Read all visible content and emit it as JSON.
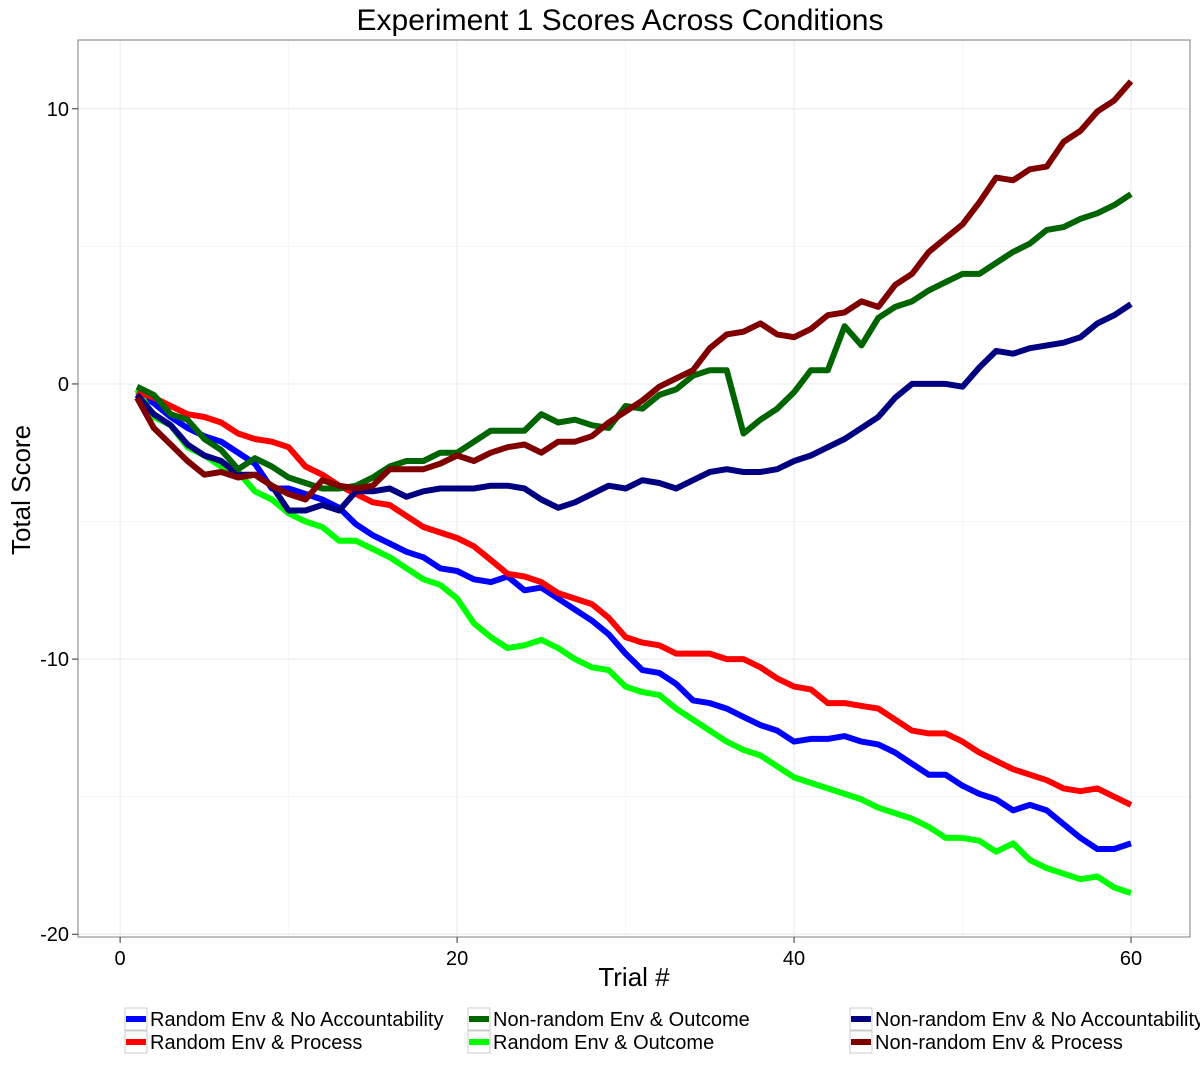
{
  "chart_data": {
    "type": "line",
    "title": "Experiment 1 Scores Across Conditions",
    "xlabel": "Trial #",
    "ylabel": "Total Score",
    "xlim": [
      -2.5,
      63.5
    ],
    "ylim": [
      -20.1,
      12.5
    ],
    "x_ticks": [
      0,
      20,
      40,
      60
    ],
    "y_ticks": [
      -20,
      -10,
      0,
      10
    ],
    "x_tick_labels": [
      "0",
      "20",
      "40",
      "60"
    ],
    "y_tick_labels": [
      "-20",
      "-10",
      "0",
      "10"
    ],
    "grid": true,
    "legend_position": "bottom",
    "x": [
      1,
      2,
      3,
      4,
      5,
      6,
      7,
      8,
      9,
      10,
      11,
      12,
      13,
      14,
      15,
      16,
      17,
      18,
      19,
      20,
      21,
      22,
      23,
      24,
      25,
      26,
      27,
      28,
      29,
      30,
      31,
      32,
      33,
      34,
      35,
      36,
      37,
      38,
      39,
      40,
      41,
      42,
      43,
      44,
      45,
      46,
      47,
      48,
      49,
      50,
      51,
      52,
      53,
      54,
      55,
      56,
      57,
      58,
      59,
      60
    ],
    "series": [
      {
        "name": "Random Env & No Accountability",
        "color": "#0000ff",
        "values": [
          -0.3,
          -0.7,
          -1.2,
          -1.6,
          -1.9,
          -2.1,
          -2.5,
          -2.9,
          -3.8,
          -3.8,
          -4.0,
          -4.2,
          -4.5,
          -5.1,
          -5.5,
          -5.8,
          -6.1,
          -6.3,
          -6.7,
          -6.8,
          -7.1,
          -7.2,
          -7.0,
          -7.5,
          -7.4,
          -7.8,
          -8.2,
          -8.6,
          -9.1,
          -9.8,
          -10.4,
          -10.5,
          -10.9,
          -11.5,
          -11.6,
          -11.8,
          -12.1,
          -12.4,
          -12.6,
          -13.0,
          -12.9,
          -12.9,
          -12.8,
          -13.0,
          -13.1,
          -13.4,
          -13.8,
          -14.2,
          -14.2,
          -14.6,
          -14.9,
          -15.1,
          -15.5,
          -15.3,
          -15.5,
          -16.0,
          -16.5,
          -16.9,
          -16.9,
          -16.7
        ]
      },
      {
        "name": "Random Env & Outcome",
        "color": "#00ff00",
        "values": [
          -0.2,
          -1.2,
          -1.5,
          -2.3,
          -2.6,
          -3.0,
          -3.2,
          -3.9,
          -4.2,
          -4.7,
          -5.0,
          -5.2,
          -5.7,
          -5.7,
          -6.0,
          -6.3,
          -6.7,
          -7.1,
          -7.3,
          -7.8,
          -8.7,
          -9.2,
          -9.6,
          -9.5,
          -9.3,
          -9.6,
          -10.0,
          -10.3,
          -10.4,
          -11.0,
          -11.2,
          -11.3,
          -11.8,
          -12.2,
          -12.6,
          -13.0,
          -13.3,
          -13.5,
          -13.9,
          -14.3,
          -14.5,
          -14.7,
          -14.9,
          -15.1,
          -15.4,
          -15.6,
          -15.8,
          -16.1,
          -16.5,
          -16.5,
          -16.6,
          -17.0,
          -16.7,
          -17.3,
          -17.6,
          -17.8,
          -18.0,
          -17.9,
          -18.3,
          -18.5
        ]
      },
      {
        "name": "Random Env & Process",
        "color": "#ff0000",
        "values": [
          -0.3,
          -0.5,
          -0.8,
          -1.1,
          -1.2,
          -1.4,
          -1.8,
          -2.0,
          -2.1,
          -2.3,
          -3.0,
          -3.3,
          -3.7,
          -4.0,
          -4.3,
          -4.4,
          -4.8,
          -5.2,
          -5.4,
          -5.6,
          -5.9,
          -6.4,
          -6.9,
          -7.0,
          -7.2,
          -7.6,
          -7.8,
          -8.0,
          -8.5,
          -9.2,
          -9.4,
          -9.5,
          -9.8,
          -9.8,
          -9.8,
          -10.0,
          -10.0,
          -10.3,
          -10.7,
          -11.0,
          -11.1,
          -11.6,
          -11.6,
          -11.7,
          -11.8,
          -12.2,
          -12.6,
          -12.7,
          -12.7,
          -13.0,
          -13.4,
          -13.7,
          -14.0,
          -14.2,
          -14.4,
          -14.7,
          -14.8,
          -14.7,
          -15.0,
          -15.3
        ]
      },
      {
        "name": "Non-random Env & No Accountability",
        "color": "#000080",
        "values": [
          -0.4,
          -1.1,
          -1.5,
          -2.2,
          -2.6,
          -2.8,
          -3.3,
          -3.3,
          -3.7,
          -4.6,
          -4.6,
          -4.4,
          -4.6,
          -3.9,
          -3.9,
          -3.8,
          -4.1,
          -3.9,
          -3.8,
          -3.8,
          -3.8,
          -3.7,
          -3.7,
          -3.8,
          -4.2,
          -4.5,
          -4.3,
          -4.0,
          -3.7,
          -3.8,
          -3.5,
          -3.6,
          -3.8,
          -3.5,
          -3.2,
          -3.1,
          -3.2,
          -3.2,
          -3.1,
          -2.8,
          -2.6,
          -2.3,
          -2.0,
          -1.6,
          -1.2,
          -0.5,
          0.0,
          0.0,
          0.0,
          -0.1,
          0.6,
          1.2,
          1.1,
          1.3,
          1.4,
          1.5,
          1.7,
          2.2,
          2.5,
          2.9
        ]
      },
      {
        "name": "Non-random Env & Outcome",
        "color": "#006400",
        "values": [
          -0.1,
          -0.4,
          -1.1,
          -1.3,
          -2.0,
          -2.4,
          -3.1,
          -2.7,
          -3.0,
          -3.4,
          -3.6,
          -3.8,
          -3.8,
          -3.7,
          -3.4,
          -3.0,
          -2.8,
          -2.8,
          -2.5,
          -2.5,
          -2.1,
          -1.7,
          -1.7,
          -1.7,
          -1.1,
          -1.4,
          -1.3,
          -1.5,
          -1.6,
          -0.8,
          -0.9,
          -0.4,
          -0.2,
          0.3,
          0.5,
          0.5,
          -1.8,
          -1.3,
          -0.9,
          -0.3,
          0.5,
          0.5,
          2.1,
          1.4,
          2.4,
          2.8,
          3.0,
          3.4,
          3.7,
          4.0,
          4.0,
          4.4,
          4.8,
          5.1,
          5.6,
          5.7,
          6.0,
          6.2,
          6.5,
          6.9
        ]
      },
      {
        "name": "Non-random Env & Process",
        "color": "#800000",
        "values": [
          -0.5,
          -1.6,
          -2.2,
          -2.8,
          -3.3,
          -3.2,
          -3.4,
          -3.3,
          -3.7,
          -4.0,
          -4.2,
          -3.5,
          -3.7,
          -3.8,
          -3.7,
          -3.1,
          -3.1,
          -3.1,
          -2.9,
          -2.6,
          -2.8,
          -2.5,
          -2.3,
          -2.2,
          -2.5,
          -2.1,
          -2.1,
          -1.9,
          -1.4,
          -1.0,
          -0.6,
          -0.1,
          0.2,
          0.5,
          1.3,
          1.8,
          1.9,
          2.2,
          1.8,
          1.7,
          2.0,
          2.5,
          2.6,
          3.0,
          2.8,
          3.6,
          4.0,
          4.8,
          5.3,
          5.8,
          6.6,
          7.5,
          7.4,
          7.8,
          7.9,
          8.8,
          9.2,
          9.9,
          10.3,
          11.0
        ]
      }
    ],
    "legend_order": [
      0,
      2,
      4,
      1,
      3,
      5
    ]
  }
}
